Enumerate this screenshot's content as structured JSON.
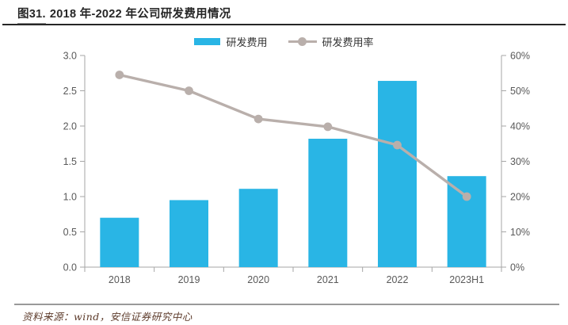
{
  "header": {
    "figure_label": "图31.",
    "title": "2018 年-2022 年公司研发费用情况"
  },
  "legend": {
    "items": [
      {
        "label": "研发费用"
      },
      {
        "label": "研发费用率"
      }
    ]
  },
  "chart_data": {
    "type": "combo",
    "categories": [
      "2018",
      "2019",
      "2020",
      "2021",
      "2022",
      "2023H1"
    ],
    "series": [
      {
        "name": "研发费用",
        "type": "bar",
        "axis": "left",
        "values": [
          0.7,
          0.95,
          1.11,
          1.82,
          2.64,
          1.29
        ]
      },
      {
        "name": "研发费用率",
        "type": "line",
        "axis": "right",
        "values": [
          54.5,
          50.0,
          42.0,
          39.8,
          34.6,
          20.0
        ]
      }
    ],
    "left_axis": {
      "min": 0,
      "max": 3,
      "step": 0.5,
      "tick_labels": [
        "0.0",
        "0.5",
        "1.0",
        "1.5",
        "2.0",
        "2.5",
        "3.0"
      ]
    },
    "right_axis": {
      "min": 0,
      "max": 60,
      "step": 10,
      "tick_labels": [
        "0%",
        "10%",
        "20%",
        "30%",
        "40%",
        "50%",
        "60%"
      ]
    },
    "grid": false,
    "legend_position": "top"
  },
  "footer": {
    "source": "资料来源：wind，安信证券研究中心"
  },
  "colors": {
    "bar_blue": "#29B5E5",
    "line_gray": "#B9AFAB",
    "axis_line": "#A6A6A6",
    "axis_text": "#595959",
    "title_text": "#262626",
    "rule_top": "#262626",
    "rule_bottom": "#999999",
    "source_text": "#5D3B2B"
  }
}
